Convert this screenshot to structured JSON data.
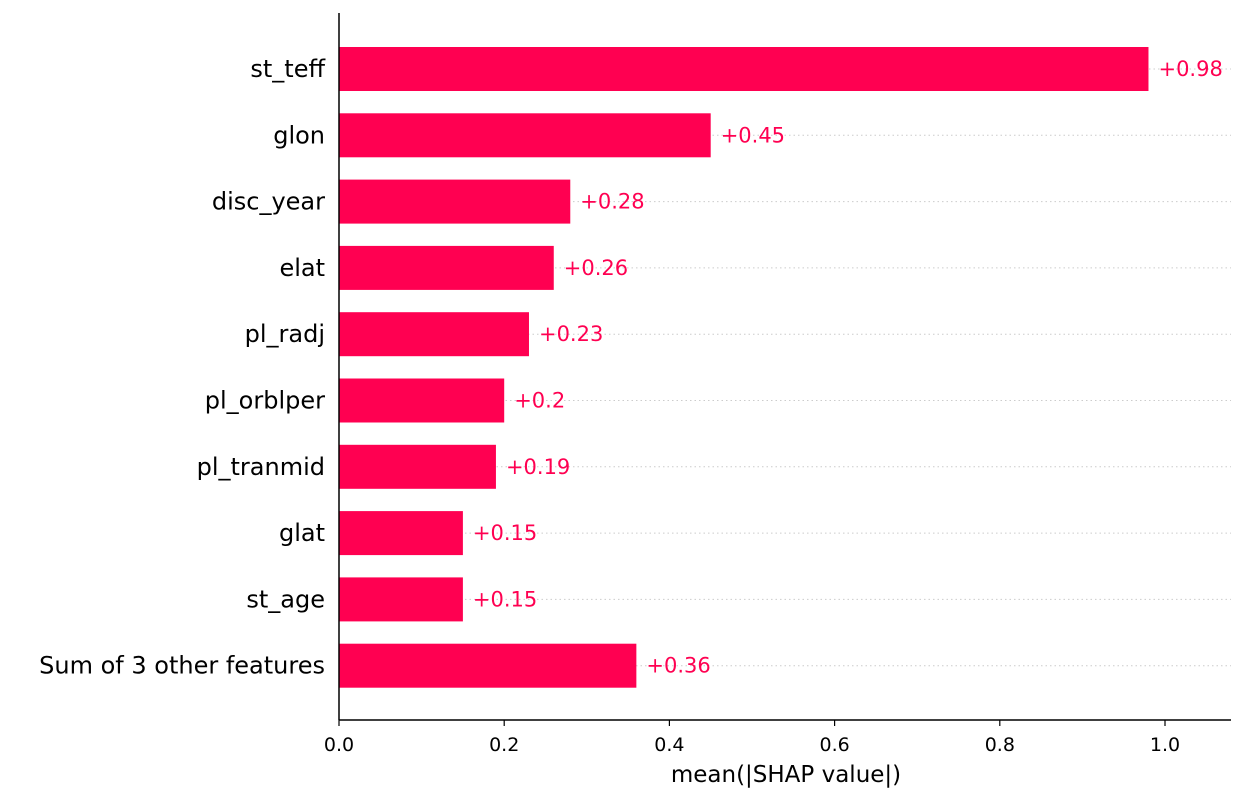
{
  "chart_data": {
    "type": "bar",
    "orientation": "horizontal",
    "categories": [
      "st_teff",
      "glon",
      "disc_year",
      "elat",
      "pl_radj",
      "pl_orblper",
      "pl_tranmid",
      "glat",
      "st_age",
      "Sum of 3 other features"
    ],
    "values": [
      0.98,
      0.45,
      0.28,
      0.26,
      0.23,
      0.2,
      0.19,
      0.15,
      0.15,
      0.36
    ],
    "value_labels": [
      "+0.98",
      "+0.45",
      "+0.28",
      "+0.26",
      "+0.23",
      "+0.2",
      "+0.19",
      "+0.15",
      "+0.15",
      "+0.36"
    ],
    "xlabel": "mean(|SHAP value|)",
    "ylabel": "",
    "title": "",
    "xlim": [
      0.0,
      1.08
    ],
    "xticks": [
      0.0,
      0.2,
      0.4,
      0.6,
      0.8,
      1.0
    ],
    "xtick_labels": [
      "0.0",
      "0.2",
      "0.4",
      "0.6",
      "0.8",
      "1.0"
    ],
    "grid": "dotted horizontal guide per row",
    "legend": "none",
    "bar_color": "#ff0051",
    "label_color": "#ff0051"
  }
}
